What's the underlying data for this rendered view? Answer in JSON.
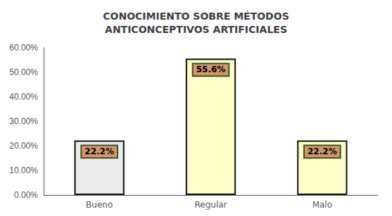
{
  "chart_data": {
    "type": "bar",
    "title": "CONOCIMIENTO SOBRE MÉTODOS\nANTICONCEPTIVOS ARTIFICIALES",
    "categories": [
      "Bueno",
      "Regular",
      "Malo"
    ],
    "values": [
      22.2,
      55.6,
      22.2
    ],
    "value_labels": [
      "22.2%",
      "55.6%",
      "22.2%"
    ],
    "data_labels": true,
    "colors": [
      "#ececec",
      "#ffffcc",
      "#ffffcc"
    ],
    "ylim": [
      0,
      60
    ],
    "yticks": [
      {
        "value": 0,
        "label": "0.00%"
      },
      {
        "value": 10,
        "label": "10.00%"
      },
      {
        "value": 20,
        "label": "20.00%"
      },
      {
        "value": 30,
        "label": "30.00%"
      },
      {
        "value": 40,
        "label": "40.00%"
      },
      {
        "value": 50,
        "label": "50.00%"
      },
      {
        "value": 60,
        "label": "60.00%"
      }
    ],
    "grid": false
  }
}
